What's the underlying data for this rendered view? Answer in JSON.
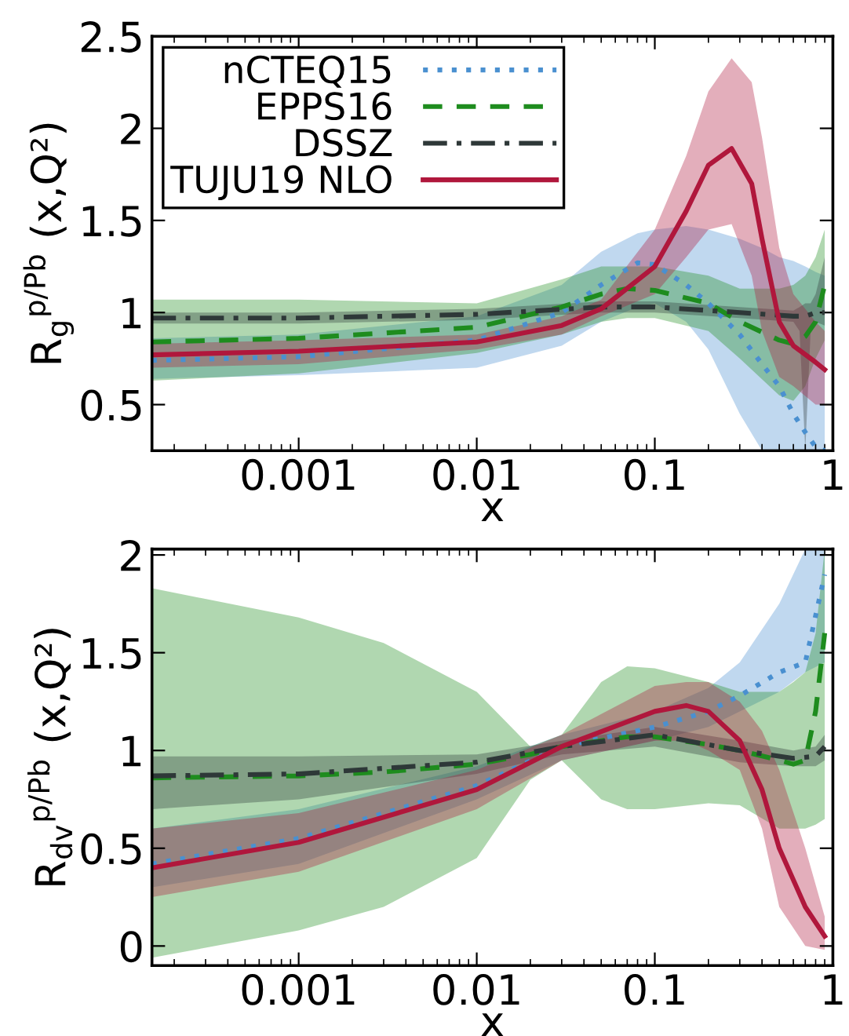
{
  "chart_data": [
    {
      "type": "line",
      "xlabel": "x",
      "ylabel": "R$_{g}$$^{p/Pb}$ (x,Q²)",
      "log": "x",
      "grid": false,
      "legend": "top left",
      "xlim": [
        0.00015,
        1
      ],
      "xticks": [
        0.001,
        0.01,
        0.1,
        1
      ],
      "ylim": [
        0.25,
        2.5
      ],
      "yticks": [
        0.5,
        1,
        1.5,
        2,
        2.5
      ],
      "series": [
        {
          "name": "nCTEQ15",
          "color": "#4a90d0",
          "line_style": "dotted",
          "x": [
            0.00015,
            0.001,
            0.01,
            0.03,
            0.05,
            0.08,
            0.1,
            0.15,
            0.2,
            0.3,
            0.4,
            0.5,
            0.6,
            0.7,
            0.8,
            0.9
          ],
          "values": [
            0.74,
            0.76,
            0.85,
            1.0,
            1.15,
            1.27,
            1.26,
            1.15,
            1.05,
            0.88,
            0.72,
            0.6,
            0.45,
            0.35,
            0.27,
            0.25
          ],
          "lower": [
            0.64,
            0.66,
            0.7,
            0.82,
            0.95,
            1.03,
            1.05,
            0.95,
            0.8,
            0.45,
            0.25,
            0.25,
            0.25,
            0.25,
            0.25,
            0.25
          ],
          "upper": [
            0.86,
            0.88,
            0.98,
            1.15,
            1.33,
            1.43,
            1.45,
            1.47,
            1.45,
            1.4,
            1.35,
            1.3,
            1.28,
            1.25,
            1.22,
            1.2
          ]
        },
        {
          "name": "EPPS16",
          "color": "#1e8c1e",
          "line_style": "dashed",
          "x": [
            0.00015,
            0.001,
            0.01,
            0.03,
            0.05,
            0.07,
            0.1,
            0.2,
            0.3,
            0.5,
            0.6,
            0.7,
            0.8,
            0.9
          ],
          "values": [
            0.84,
            0.86,
            0.92,
            1.03,
            1.1,
            1.13,
            1.12,
            1.05,
            0.95,
            0.85,
            0.83,
            0.87,
            0.95,
            1.15
          ],
          "lower": [
            0.63,
            0.67,
            0.78,
            0.88,
            0.95,
            0.97,
            0.97,
            0.9,
            0.75,
            0.55,
            0.52,
            0.6,
            0.75,
            0.85
          ],
          "upper": [
            1.07,
            1.07,
            1.05,
            1.18,
            1.25,
            1.25,
            1.25,
            1.2,
            1.13,
            1.13,
            1.15,
            1.2,
            1.3,
            1.45
          ]
        },
        {
          "name": "DSSZ",
          "color": "#2e3838",
          "line_style": "dashdot",
          "x": [
            0.00015,
            0.001,
            0.01,
            0.05,
            0.1,
            0.3,
            0.6,
            0.65,
            0.7,
            0.75,
            0.8,
            0.9
          ],
          "values": [
            0.97,
            0.97,
            0.99,
            1.03,
            1.03,
            1.0,
            0.98,
            0.98,
            0.98,
            0.99,
            1.0,
            1.0
          ],
          "lower": [
            0.94,
            0.94,
            0.96,
            1.0,
            1.0,
            0.97,
            0.95,
            0.9,
            0.25,
            0.9,
            0.95,
            0.93
          ],
          "upper": [
            1.0,
            1.0,
            1.02,
            1.06,
            1.06,
            1.03,
            1.01,
            1.03,
            1.05,
            1.05,
            1.1,
            1.3
          ]
        },
        {
          "name": "TUJU19 NLO",
          "color": "#b0173c",
          "line_style": "solid",
          "x": [
            0.00015,
            0.001,
            0.01,
            0.03,
            0.05,
            0.1,
            0.15,
            0.2,
            0.27,
            0.35,
            0.4,
            0.5,
            0.6,
            0.8,
            0.9
          ],
          "values": [
            0.77,
            0.79,
            0.84,
            0.93,
            1.02,
            1.25,
            1.55,
            1.8,
            1.89,
            1.7,
            1.4,
            0.95,
            0.82,
            0.73,
            0.69
          ],
          "lower": [
            0.7,
            0.72,
            0.8,
            0.88,
            0.98,
            1.1,
            1.3,
            1.45,
            1.48,
            1.2,
            0.9,
            0.65,
            0.6,
            0.5,
            0.5
          ],
          "upper": [
            0.83,
            0.85,
            0.88,
            0.98,
            1.07,
            1.45,
            1.85,
            2.2,
            2.38,
            2.25,
            1.95,
            1.35,
            1.1,
            0.95,
            0.9
          ]
        }
      ]
    },
    {
      "type": "line",
      "xlabel": "x",
      "ylabel": "R$_{dv}$$^{p/Pb}$ (x,Q²)",
      "log": "x",
      "grid": false,
      "xlim": [
        0.00015,
        1
      ],
      "xticks": [
        0.001,
        0.01,
        0.1,
        1
      ],
      "ylim": [
        -0.1,
        2.03
      ],
      "yticks": [
        0,
        0.5,
        1,
        1.5,
        2
      ],
      "series": [
        {
          "color": "#4a90d0",
          "line_style": "dotted",
          "x": [
            0.00015,
            0.001,
            0.01,
            0.03,
            0.1,
            0.2,
            0.3,
            0.5,
            0.7,
            0.9
          ],
          "values": [
            0.42,
            0.55,
            0.82,
            1.02,
            1.12,
            1.2,
            1.28,
            1.4,
            1.45,
            1.9
          ],
          "lower": [
            0.3,
            0.42,
            0.75,
            0.95,
            1.05,
            1.12,
            1.2,
            1.3,
            1.4,
            1.45
          ],
          "upper": [
            0.6,
            0.7,
            0.92,
            1.08,
            1.2,
            1.32,
            1.45,
            1.75,
            2.03,
            2.03
          ]
        },
        {
          "color": "#1e8c1e",
          "line_style": "dashed",
          "x": [
            0.00015,
            0.001,
            0.003,
            0.01,
            0.02,
            0.03,
            0.05,
            0.07,
            0.1,
            0.2,
            0.3,
            0.5,
            0.6,
            0.7,
            0.8,
            0.9
          ],
          "values": [
            0.86,
            0.87,
            0.89,
            0.93,
            0.98,
            1.02,
            1.05,
            1.07,
            1.07,
            1.03,
            1.0,
            0.95,
            0.93,
            0.95,
            1.2,
            1.6
          ],
          "lower": [
            -0.06,
            0.08,
            0.2,
            0.45,
            0.85,
            0.95,
            0.75,
            0.7,
            0.7,
            0.73,
            0.72,
            0.6,
            0.6,
            0.6,
            0.62,
            0.65
          ],
          "upper": [
            1.83,
            1.68,
            1.55,
            1.3,
            1.02,
            1.08,
            1.35,
            1.43,
            1.42,
            1.35,
            1.3,
            1.3,
            1.35,
            1.4,
            1.6,
            2.03
          ]
        },
        {
          "color": "#2e3838",
          "line_style": "dashdot",
          "x": [
            0.00015,
            0.001,
            0.01,
            0.03,
            0.1,
            0.3,
            0.6,
            0.8,
            0.9
          ],
          "values": [
            0.87,
            0.88,
            0.94,
            1.02,
            1.08,
            1.0,
            0.96,
            0.97,
            1.02
          ],
          "lower": [
            0.7,
            0.75,
            0.88,
            0.98,
            1.02,
            0.94,
            0.92,
            0.92,
            0.95
          ],
          "upper": [
            0.97,
            0.97,
            0.98,
            1.05,
            1.12,
            1.05,
            1.0,
            1.02,
            1.08
          ]
        },
        {
          "color": "#b0173c",
          "line_style": "solid",
          "x": [
            0.00015,
            0.001,
            0.01,
            0.03,
            0.1,
            0.15,
            0.2,
            0.3,
            0.4,
            0.5,
            0.7,
            0.9
          ],
          "values": [
            0.4,
            0.53,
            0.8,
            1.02,
            1.2,
            1.23,
            1.2,
            1.05,
            0.8,
            0.5,
            0.2,
            0.05
          ],
          "lower": [
            0.25,
            0.38,
            0.7,
            0.95,
            1.05,
            1.05,
            1.0,
            0.9,
            0.6,
            0.2,
            0.0,
            -0.02
          ],
          "upper": [
            0.6,
            0.68,
            0.9,
            1.08,
            1.33,
            1.35,
            1.35,
            1.25,
            1.1,
            0.9,
            0.5,
            0.15
          ]
        }
      ]
    }
  ]
}
